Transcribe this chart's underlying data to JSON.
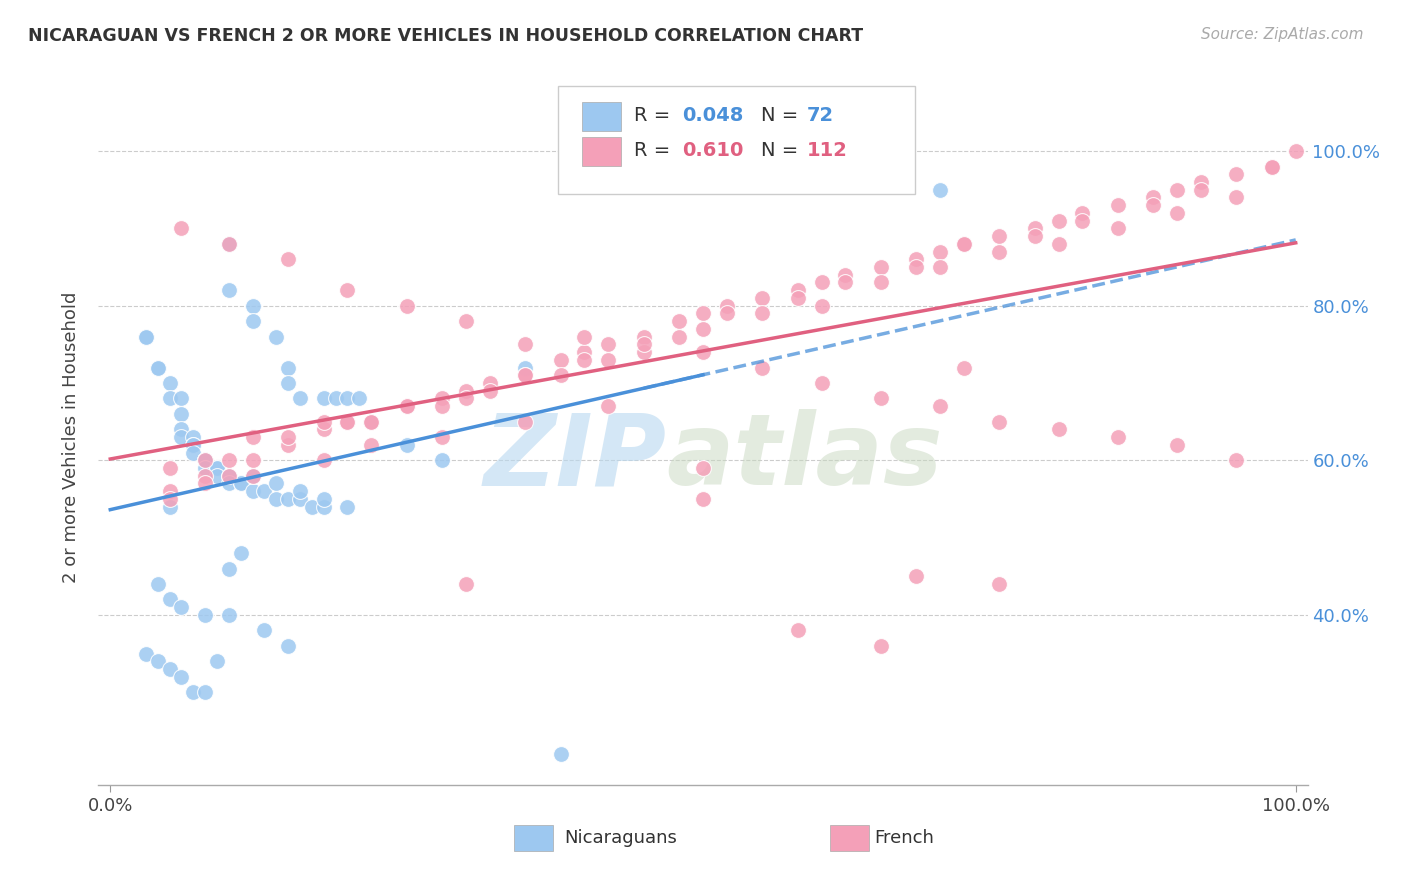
{
  "title": "NICARAGUAN VS FRENCH 2 OR MORE VEHICLES IN HOUSEHOLD CORRELATION CHART",
  "source": "Source: ZipAtlas.com",
  "ylabel": "2 or more Vehicles in Household",
  "color_blue": "#9dc8f0",
  "color_pink": "#f4a0b8",
  "color_blue_line": "#4a90d9",
  "color_pink_line": "#e06080",
  "R_nic": 0.048,
  "N_nic": 72,
  "R_french": 0.61,
  "N_french": 112,
  "nic_x": [
    5,
    10,
    10,
    12,
    12,
    14,
    15,
    15,
    16,
    18,
    19,
    20,
    21,
    22,
    25,
    28,
    35,
    70,
    3,
    4,
    5,
    5,
    6,
    6,
    6,
    7,
    7,
    7,
    7,
    8,
    8,
    8,
    8,
    9,
    9,
    9,
    10,
    10,
    11,
    11,
    12,
    13,
    14,
    15,
    16,
    17,
    18,
    4,
    5,
    6,
    8,
    10,
    13,
    15,
    3,
    4,
    5,
    6,
    7,
    8,
    9,
    10,
    11,
    12,
    14,
    16,
    18,
    20,
    3,
    4,
    6,
    38
  ],
  "nic_y": [
    54,
    88,
    82,
    80,
    78,
    76,
    72,
    70,
    68,
    68,
    68,
    68,
    68,
    65,
    62,
    60,
    72,
    95,
    76,
    72,
    70,
    68,
    66,
    64,
    63,
    63,
    62,
    62,
    61,
    60,
    60,
    60,
    59,
    59,
    59,
    58,
    58,
    57,
    57,
    57,
    56,
    56,
    55,
    55,
    55,
    54,
    54,
    44,
    42,
    41,
    40,
    40,
    38,
    36,
    35,
    34,
    33,
    32,
    30,
    30,
    34,
    46,
    48,
    58,
    57,
    56,
    55,
    54,
    76,
    72,
    68,
    22
  ],
  "french_x": [
    5,
    8,
    10,
    12,
    15,
    18,
    20,
    22,
    25,
    28,
    30,
    32,
    35,
    38,
    40,
    42,
    45,
    48,
    50,
    52,
    55,
    58,
    60,
    62,
    65,
    68,
    70,
    72,
    75,
    78,
    80,
    82,
    85,
    88,
    90,
    92,
    95,
    98,
    100,
    6,
    10,
    15,
    20,
    25,
    30,
    35,
    40,
    45,
    50,
    55,
    60,
    65,
    70,
    75,
    80,
    85,
    90,
    95,
    8,
    12,
    18,
    22,
    28,
    32,
    38,
    42,
    48,
    52,
    58,
    62,
    68,
    72,
    78,
    82,
    88,
    92,
    98,
    5,
    10,
    15,
    20,
    25,
    30,
    35,
    40,
    45,
    50,
    55,
    60,
    65,
    70,
    75,
    80,
    85,
    90,
    95,
    30,
    50,
    68,
    75,
    5,
    8,
    12,
    18,
    22,
    28,
    35,
    42,
    50,
    58,
    65,
    72
  ],
  "french_y": [
    56,
    58,
    58,
    60,
    62,
    64,
    65,
    65,
    67,
    68,
    69,
    70,
    71,
    73,
    74,
    75,
    76,
    78,
    79,
    80,
    81,
    82,
    83,
    84,
    85,
    86,
    87,
    88,
    89,
    90,
    91,
    92,
    93,
    94,
    95,
    96,
    97,
    98,
    100,
    90,
    88,
    86,
    82,
    80,
    78,
    75,
    76,
    74,
    74,
    72,
    70,
    68,
    67,
    65,
    64,
    63,
    62,
    60,
    60,
    63,
    65,
    65,
    67,
    69,
    71,
    73,
    76,
    79,
    81,
    83,
    85,
    88,
    89,
    91,
    93,
    95,
    98,
    59,
    60,
    63,
    65,
    67,
    68,
    71,
    73,
    75,
    77,
    79,
    80,
    83,
    85,
    87,
    88,
    90,
    92,
    94,
    44,
    59,
    45,
    44,
    55,
    57,
    58,
    60,
    62,
    63,
    65,
    67,
    55,
    38,
    36,
    72
  ]
}
